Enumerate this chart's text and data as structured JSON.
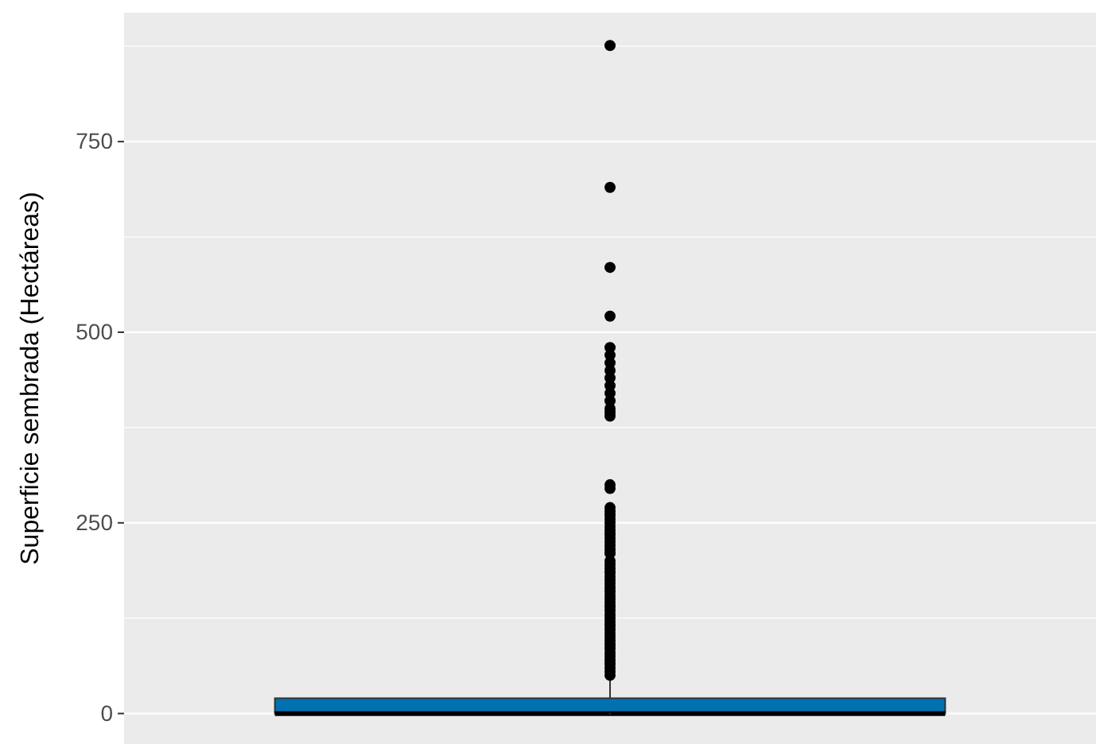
{
  "chart_data": {
    "type": "box",
    "ylabel": "Superficie sembrada (Hectáreas)",
    "categories": [
      null
    ],
    "ylim": [
      -40,
      919
    ],
    "yticks": [
      0,
      250,
      500,
      750
    ],
    "grid": "y",
    "tick_labels": "y",
    "series": [
      {
        "color": "#0072b2",
        "boxes": [
          {
            "low": 0,
            "q1": 0,
            "median": 0,
            "q3": 20,
            "high": 47,
            "outliers": [
              50,
              55,
              60,
              65,
              70,
              75,
              80,
              85,
              90,
              95,
              100,
              105,
              110,
              115,
              120,
              125,
              130,
              135,
              140,
              145,
              150,
              155,
              160,
              165,
              170,
              175,
              180,
              185,
              190,
              195,
              200,
              210,
              215,
              220,
              225,
              230,
              235,
              240,
              245,
              250,
              255,
              260,
              265,
              270,
              295,
              300,
              390,
              395,
              400,
              410,
              420,
              430,
              440,
              450,
              460,
              470,
              480,
              521,
              585,
              690,
              876
            ]
          }
        ]
      }
    ]
  }
}
